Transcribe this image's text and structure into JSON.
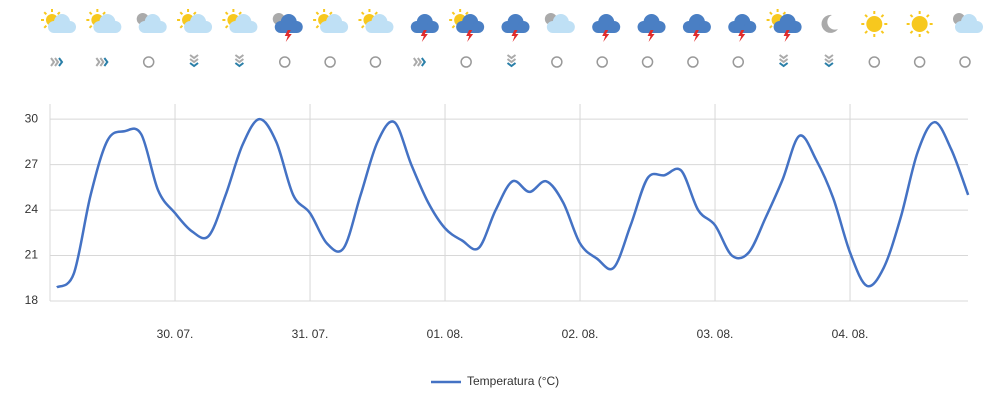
{
  "chart_data": {
    "type": "line",
    "categories": [
      null,
      null,
      null,
      null,
      null,
      null,
      null,
      "30. 07.",
      null,
      null,
      null,
      null,
      null,
      null,
      null,
      "31. 07.",
      null,
      null,
      null,
      null,
      null,
      null,
      null,
      "01. 08.",
      null,
      null,
      null,
      null,
      null,
      null,
      null,
      "02. 08.",
      null,
      null,
      null,
      null,
      null,
      null,
      null,
      "03. 08.",
      null,
      null,
      null,
      null,
      null,
      null,
      null,
      "04. 08.",
      null,
      null,
      null,
      null,
      null,
      null,
      null
    ],
    "series": [
      {
        "name": "Temperatura (°C)",
        "color": "#4472c4",
        "values": [
          18.9,
          19.8,
          25,
          28.6,
          29.2,
          29,
          25.3,
          23.8,
          22.6,
          22.3,
          25,
          28.3,
          30,
          28.5,
          25,
          23.8,
          21.8,
          21.5,
          25,
          28.5,
          29.8,
          27,
          24.5,
          22.8,
          22,
          21.5,
          24,
          25.9,
          25.2,
          25.9,
          24.5,
          21.8,
          20.8,
          20.2,
          23,
          26.1,
          26.3,
          26.6,
          24,
          23,
          21,
          21.2,
          23.5,
          26,
          28.9,
          27.3,
          24.8,
          21.2,
          19,
          20.2,
          23.5,
          27.8,
          29.8,
          28,
          25
        ]
      }
    ],
    "ylim": [
      18,
      31
    ],
    "yticks": [
      18,
      21,
      24,
      27,
      30
    ],
    "grid": true,
    "legend": "bottom"
  }
}
